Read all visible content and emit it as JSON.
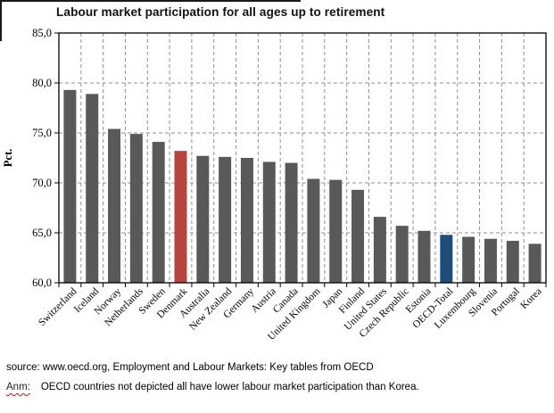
{
  "title": "Labour market participation for all ages up to retirement",
  "footer": {
    "source": "source: www.oecd.org, Employment and Labour Markets: Key tables from OECD",
    "note_label": "Anm:",
    "note_text": "OECD countries not depicted all have lower labour market participation than Korea."
  },
  "chart_data": {
    "type": "bar",
    "title": "Labour market participation for all ages up to retirement",
    "xlabel": "",
    "ylabel": "Pct.",
    "ylim": [
      60,
      85
    ],
    "ytick_step": 5,
    "ytick_labels": [
      "60,0",
      "65,0",
      "70,0",
      "75,0",
      "80,0",
      "85,0"
    ],
    "grid": "dashed-both",
    "legend": "none",
    "categories": [
      "Switzerland",
      "Iceland",
      "Norway",
      "Netherlands",
      "Sweden",
      "Denmark",
      "Australia",
      "New Zealand",
      "Germany",
      "Austria",
      "Canada",
      "United Kingdom",
      "Japan",
      "Finland",
      "United States",
      "Czech Republic",
      "Estonia",
      "OECD-Total",
      "Luxembourg",
      "Slovenia",
      "Portugal",
      "Korea"
    ],
    "values": [
      79.3,
      78.9,
      75.4,
      74.9,
      74.1,
      73.2,
      72.7,
      72.6,
      72.5,
      72.1,
      72.0,
      70.4,
      70.3,
      69.3,
      66.6,
      65.7,
      65.2,
      64.8,
      64.6,
      64.4,
      64.2,
      63.9
    ],
    "bar_color_default": "#595959",
    "bar_color_overrides": {
      "Denmark": "#b64642",
      "OECD-Total": "#1c4e79"
    }
  }
}
